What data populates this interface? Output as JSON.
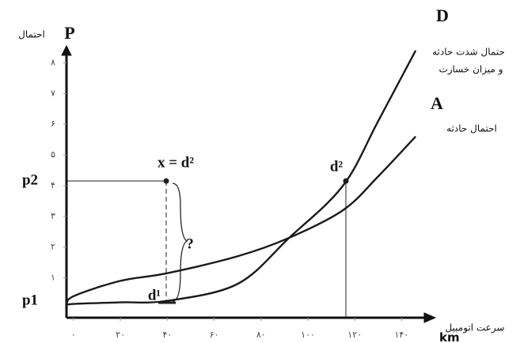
{
  "chart_data": {
    "type": "line",
    "x": [
      -3,
      0,
      20,
      40,
      70,
      92,
      115,
      130,
      146
    ],
    "series": [
      {
        "name": "D",
        "color": "#1a1a1a",
        "values": [
          0.1,
          0.15,
          0.2,
          0.25,
          0.8,
          2.3,
          4.0,
          6.1,
          8.4
        ]
      },
      {
        "name": "A",
        "color": "#1a1a1a",
        "values": [
          0.1,
          0.4,
          0.9,
          1.15,
          1.7,
          2.3,
          3.2,
          4.3,
          5.6
        ]
      }
    ],
    "xlim": [
      -3,
      150
    ],
    "ylim": [
      -0.3,
      8.5
    ],
    "xticks": [
      {
        "value": 0,
        "label": "۰"
      },
      {
        "value": 20,
        "label": "۲۰"
      },
      {
        "value": 40,
        "label": "۴۰"
      },
      {
        "value": 60,
        "label": "۶۰"
      },
      {
        "value": 80,
        "label": "۸۰"
      },
      {
        "value": 100,
        "label": "۱۰۰"
      },
      {
        "value": 120,
        "label": "۱۲۰"
      },
      {
        "value": 140,
        "label": "۱۴۰"
      }
    ],
    "yticks": [
      {
        "value": 1,
        "label": "۱"
      },
      {
        "value": 2,
        "label": "۲"
      },
      {
        "value": 3,
        "label": "۳"
      },
      {
        "value": 4,
        "label": "۴"
      },
      {
        "value": 5,
        "label": "۵"
      },
      {
        "value": 6,
        "label": "۶"
      },
      {
        "value": 7,
        "label": "۷"
      },
      {
        "value": 8,
        "label": "۸"
      }
    ],
    "y_label": "P",
    "y_label_fa": "احتمال",
    "x_label": "km",
    "x_label_fa": "سرعت اتومبیل",
    "series_labels": {
      "D": [
        "حتمال شدت حادثه",
        "و میزان خسارت"
      ],
      "A": "احتمال حادثه"
    },
    "annotations": {
      "p1": "p1",
      "p2": "p2",
      "x_eq": "x = d²",
      "d2": "d²",
      "d1": "d¹",
      "question": "?"
    }
  }
}
